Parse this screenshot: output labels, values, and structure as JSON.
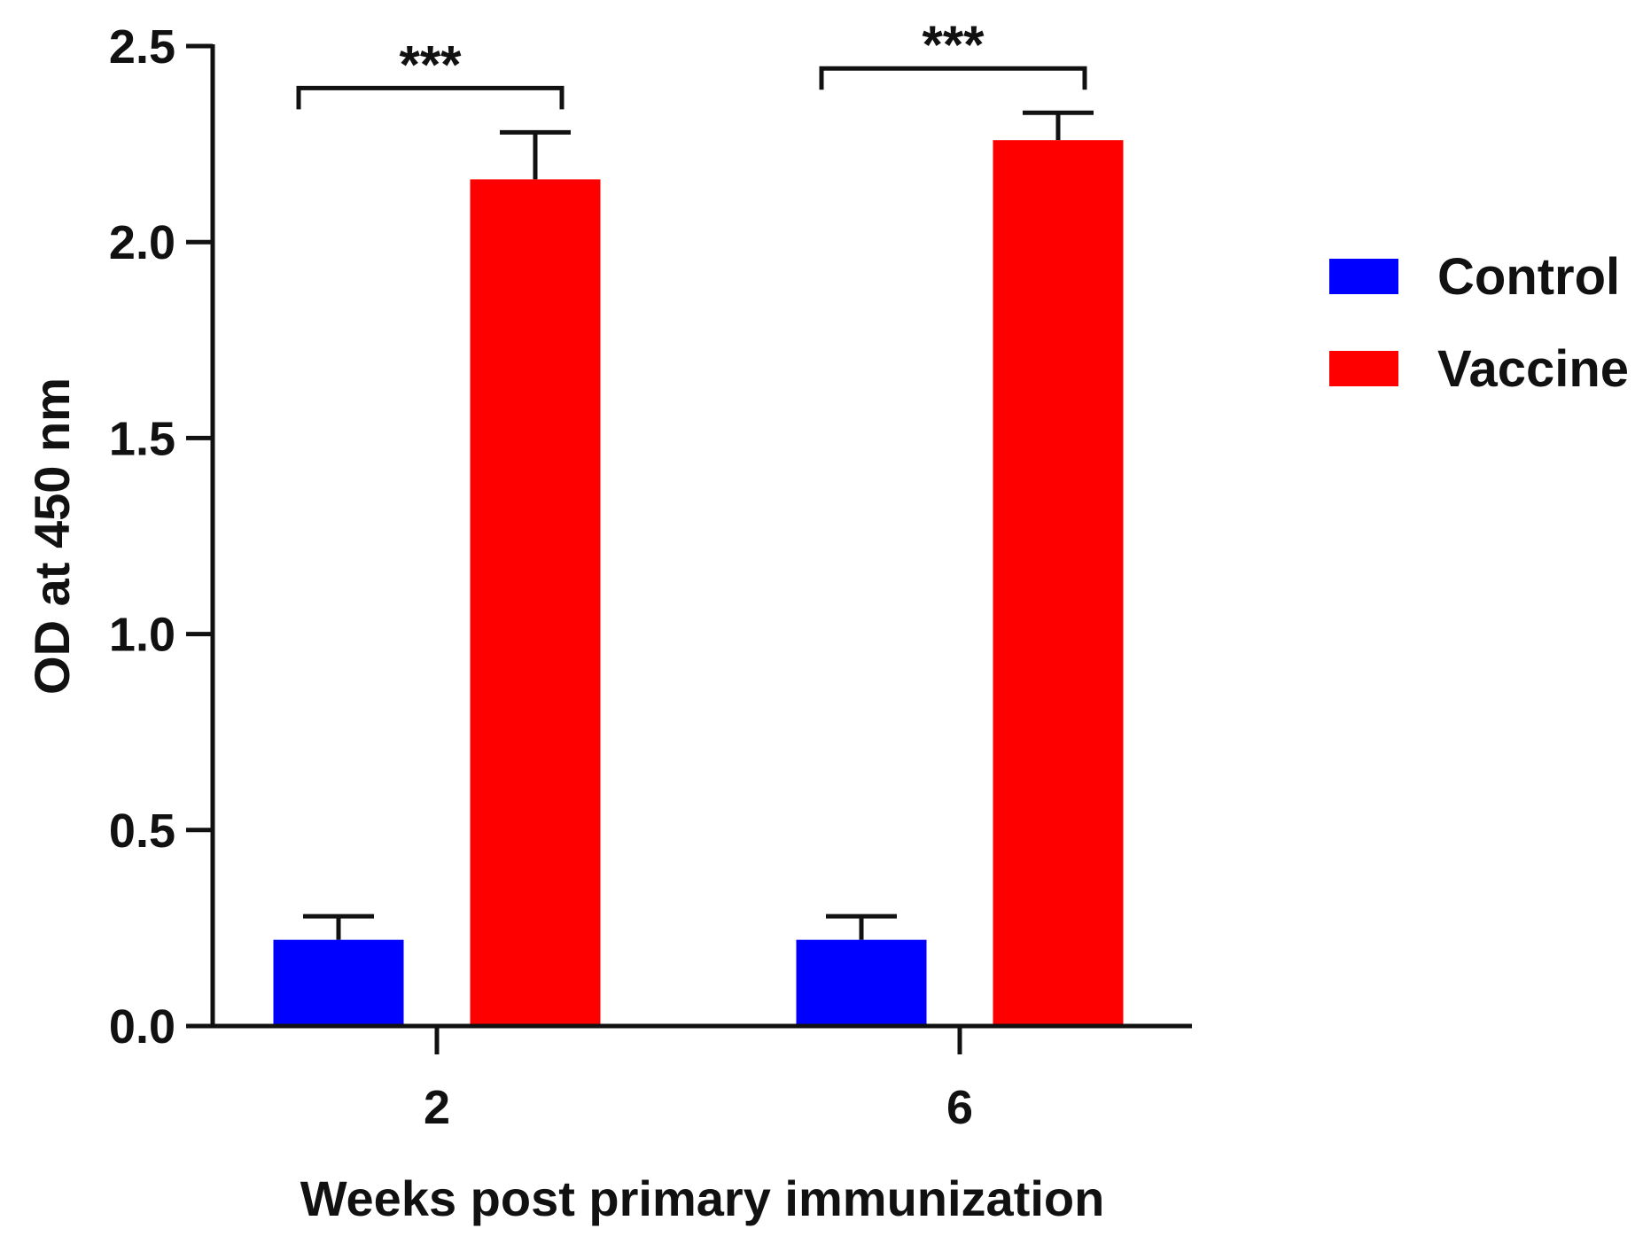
{
  "chart_data": {
    "type": "bar",
    "title": "",
    "xlabel": "Weeks post primary immunization",
    "ylabel": "OD at 450 nm",
    "ylim": [
      0,
      2.5
    ],
    "yticks": [
      "0.0",
      "0.5",
      "1.0",
      "1.5",
      "2.0",
      "2.5"
    ],
    "categories": [
      "2",
      "6"
    ],
    "series": [
      {
        "name": "Control",
        "color": "#0000ff",
        "values": [
          0.22,
          0.22
        ],
        "errors": [
          0.06,
          0.06
        ]
      },
      {
        "name": "Vaccine",
        "color": "#ff0000",
        "values": [
          2.16,
          2.26
        ],
        "errors": [
          0.12,
          0.07
        ]
      }
    ],
    "significance": [
      "***",
      "***"
    ],
    "legend_position": "right"
  }
}
